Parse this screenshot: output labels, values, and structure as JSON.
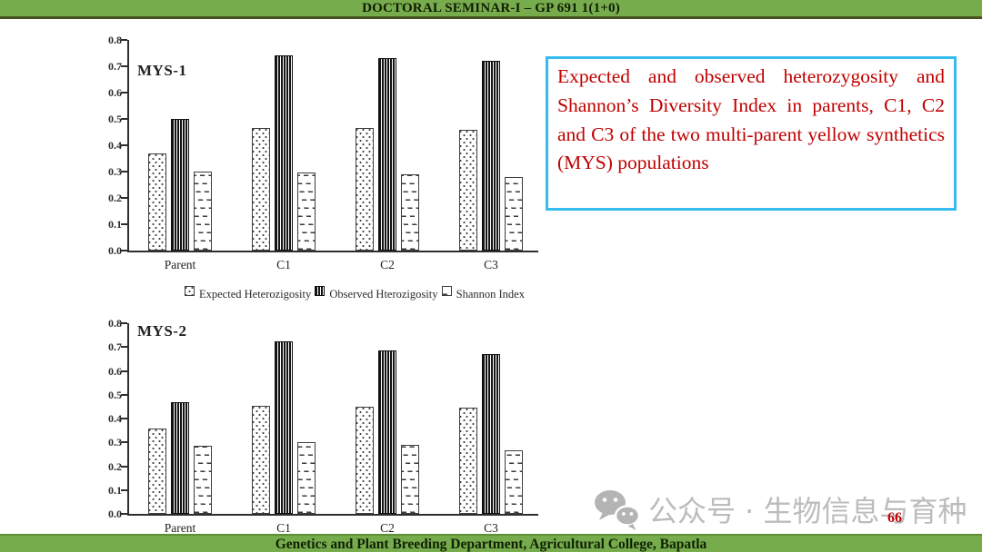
{
  "header": {
    "title": "DOCTORAL SEMINAR-I – GP 691 1(1+0)"
  },
  "footer": {
    "text": "Genetics and Plant Breeding Department, Agricultural College, Bapatla"
  },
  "page_number": "66",
  "note_box": {
    "text": "Expected and observed heterozygosity and Shannon’s Diversity Index in parents, C1, C2 and C3 of the two multi-parent yellow synthetics (MYS) populations",
    "border_color": "#35bbed",
    "text_color": "#c00000"
  },
  "watermark": {
    "icon": "wechat-icon",
    "text": "公众号 · 生物信息与育种",
    "color": "#bcbcbc"
  },
  "legend": {
    "items": [
      {
        "label": "Expected Heterozigosity",
        "pattern": "dots"
      },
      {
        "label": "Observed Hterozigosity",
        "pattern": "vstripes"
      },
      {
        "label": "Shannon Index",
        "pattern": "dashes"
      }
    ]
  },
  "colors": {
    "bar_green": "#77ac4d",
    "note_red": "#c00000",
    "note_border_cyan": "#35bbed",
    "watermark_gray": "#bcbcbc",
    "chart_ink": "#2e2e2e"
  },
  "chart_data": [
    {
      "type": "bar",
      "title": "MYS-1",
      "categories": [
        "Parent",
        "C1",
        "C2",
        "C3"
      ],
      "series": [
        {
          "name": "Expected Heterozigosity",
          "pattern": "dots",
          "values": [
            0.37,
            0.465,
            0.465,
            0.46
          ]
        },
        {
          "name": "Observed Hterozigosity",
          "pattern": "vstripes",
          "values": [
            0.5,
            0.74,
            0.73,
            0.72
          ]
        },
        {
          "name": "Shannon Index",
          "pattern": "dashes",
          "values": [
            0.3,
            0.295,
            0.29,
            0.28
          ]
        }
      ],
      "xlabel": "",
      "ylabel": "",
      "ylim": [
        0,
        0.8
      ],
      "yticks": [
        "0.0",
        "0.1",
        "0.2",
        "0.3",
        "0.4",
        "0.5",
        "0.6",
        "0.7",
        "0.8"
      ],
      "grid": false,
      "legend_position": "below"
    },
    {
      "type": "bar",
      "title": "MYS-2",
      "categories": [
        "Parent",
        "C1",
        "C2",
        "C3"
      ],
      "series": [
        {
          "name": "Expected Heterozigosity",
          "pattern": "dots",
          "values": [
            0.36,
            0.455,
            0.45,
            0.445
          ]
        },
        {
          "name": "Observed Hterozigosity",
          "pattern": "vstripes",
          "values": [
            0.47,
            0.725,
            0.685,
            0.67
          ]
        },
        {
          "name": "Shannon Index",
          "pattern": "dashes",
          "values": [
            0.285,
            0.3,
            0.29,
            0.265
          ]
        }
      ],
      "xlabel": "",
      "ylabel": "",
      "ylim": [
        0,
        0.8
      ],
      "yticks": [
        "0.0",
        "0.1",
        "0.2",
        "0.3",
        "0.4",
        "0.5",
        "0.6",
        "0.7",
        "0.8"
      ],
      "grid": false,
      "legend_position": "none"
    }
  ]
}
